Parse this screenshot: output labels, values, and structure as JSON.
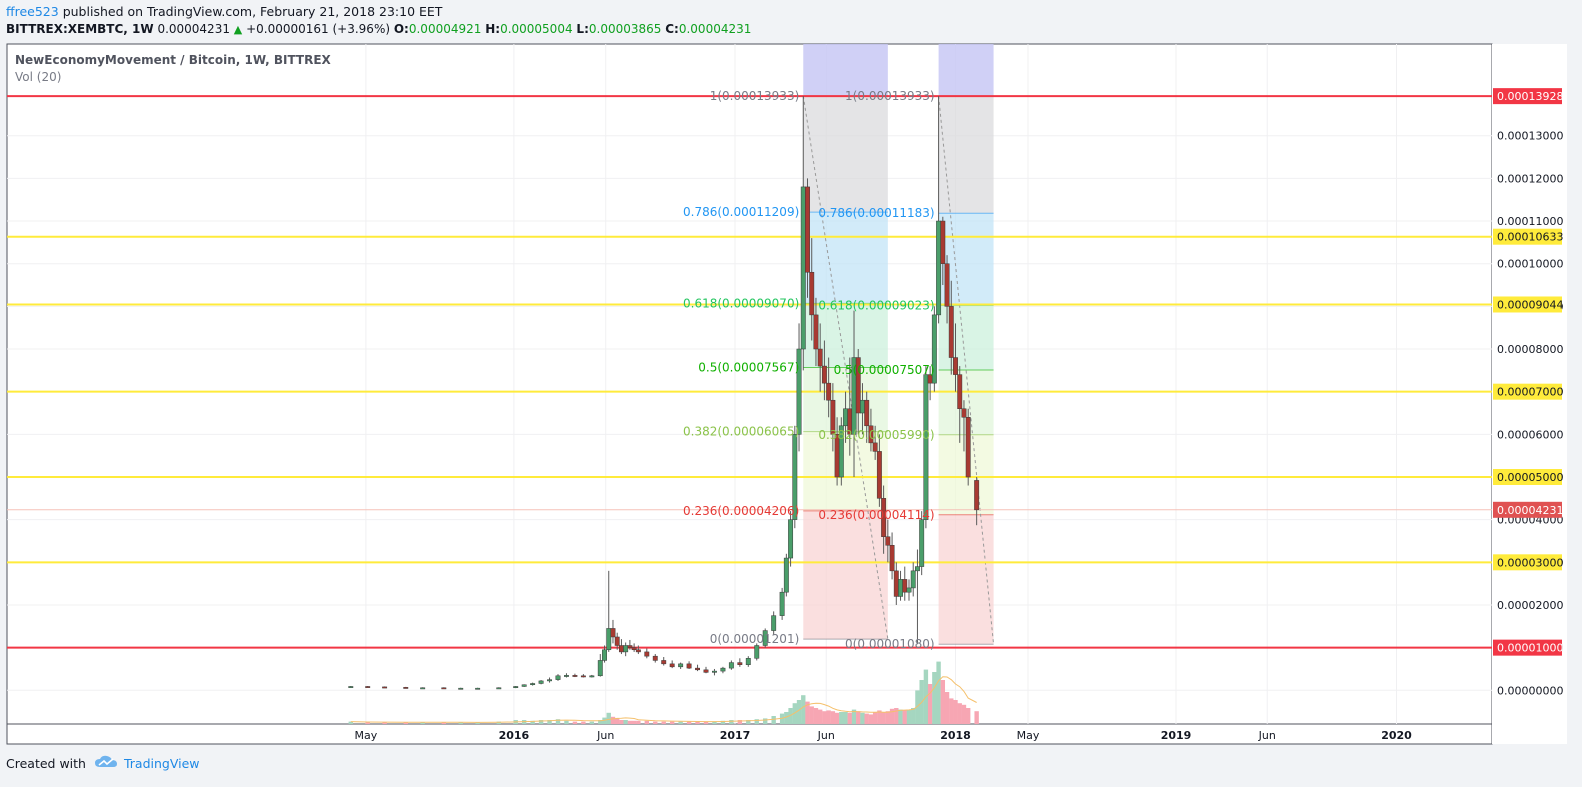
{
  "header": {
    "author": "ffree523",
    "published_text": "published on TradingView.com, February 21, 2018 23:10 EET"
  },
  "ohlc": {
    "symbol": "BITTREX:XEMBTC, 1W",
    "price": "0.00004231",
    "change": "+0.00000161 (+3.96%)",
    "o_label": "O:",
    "o": "0.00004921",
    "h_label": "H:",
    "h": "0.00005004",
    "l_label": "L:",
    "l": "0.00003865",
    "c_label": "C:",
    "c": "0.00004231",
    "up_color": "#10a020"
  },
  "footer": {
    "created_with": "Created with",
    "brand": "TradingView"
  },
  "chart_data": {
    "type": "candlestick",
    "title": "NewEconomyMovement / Bitcoin, 1W, BITTREX",
    "indicator_label": "Vol (20)",
    "ylim": [
      0.0,
      0.00014
    ],
    "y_ticks": [
      "0.00000000",
      "0.00001000",
      "0.00002000",
      "0.00003000",
      "0.00004000",
      "0.00005000",
      "0.00006000",
      "0.00007000",
      "0.00008000",
      "0.00009000",
      "0.00010000",
      "0.00011000",
      "0.00012000",
      "0.00013000"
    ],
    "x_ticks": [
      {
        "label": "May",
        "date": "2015-05-01"
      },
      {
        "label": "2016",
        "date": "2016-01-01"
      },
      {
        "label": "Jun",
        "date": "2016-06-01"
      },
      {
        "label": "2017",
        "date": "2017-01-01"
      },
      {
        "label": "Jun",
        "date": "2017-06-01"
      },
      {
        "label": "2018",
        "date": "2018-01-01"
      },
      {
        "label": "May",
        "date": "2018-05-01"
      },
      {
        "label": "2019",
        "date": "2019-01-01"
      },
      {
        "label": "Jun",
        "date": "2019-06-01"
      },
      {
        "label": "2020",
        "date": "2020-01-01"
      }
    ],
    "horizontal_lines": [
      {
        "value": 0.00013928,
        "label": "0.00013928",
        "color": "#f23645"
      },
      {
        "value": 0.00010633,
        "label": "0.00010633",
        "color": "#ffeb3b"
      },
      {
        "value": 9.044e-05,
        "label": "0.00009044",
        "color": "#ffeb3b"
      },
      {
        "value": 7e-05,
        "label": "0.00007000",
        "color": "#ffeb3b"
      },
      {
        "value": 5e-05,
        "label": "0.00005000",
        "color": "#ffeb3b"
      },
      {
        "value": 3e-05,
        "label": "0.00003000",
        "color": "#ffeb3b"
      },
      {
        "value": 1e-05,
        "label": "0.00001000",
        "color": "#f23645"
      }
    ],
    "last_price": {
      "value": 4.231e-05,
      "label": "0.00004231",
      "color": "#e05252"
    },
    "fib_retracements": [
      {
        "from_date": "2017-04-24",
        "to_date": "2017-09-11",
        "start_date": "2017-04-24",
        "levels": [
          {
            "ratio": "1",
            "value": 0.00013933,
            "label": "1(0.00013933)",
            "color": "#787b86"
          },
          {
            "ratio": "0.786",
            "value": 0.00011209,
            "label": "0.786(0.00011209)",
            "color": "#2196f3"
          },
          {
            "ratio": "0.618",
            "value": 9.07e-05,
            "label": "0.618(0.00009070)",
            "color": "#22c55e"
          },
          {
            "ratio": "0.5",
            "value": 7.567e-05,
            "label": "0.5(0.00007567)",
            "color": "#10b000"
          },
          {
            "ratio": "0.382",
            "value": 6.065e-05,
            "label": "0.382(0.00006065)",
            "color": "#8bc34a"
          },
          {
            "ratio": "0.236",
            "value": 4.206e-05,
            "label": "0.236(0.00004206)",
            "color": "#e53935"
          },
          {
            "ratio": "0",
            "value": 1.201e-05,
            "label": "0(0.00001201)",
            "color": "#787b86"
          }
        ]
      },
      {
        "from_date": "2017-12-04",
        "to_date": "2018-03-05",
        "start_date": "2017-12-04",
        "levels": [
          {
            "ratio": "1",
            "value": 0.00013933,
            "label": "1(0.00013933)",
            "color": "#787b86"
          },
          {
            "ratio": "0.786",
            "value": 0.00011183,
            "label": "0.786(0.00011183)",
            "color": "#2196f3"
          },
          {
            "ratio": "0.618",
            "value": 9.023e-05,
            "label": "0.618(0.00009023)",
            "color": "#22c55e"
          },
          {
            "ratio": "0.5",
            "value": 7.507e-05,
            "label": "0.5(0.00007507)",
            "color": "#10b000"
          },
          {
            "ratio": "0.382",
            "value": 5.99e-05,
            "label": "0.382(0.00005990)",
            "color": "#8bc34a"
          },
          {
            "ratio": "0.236",
            "value": 4.114e-05,
            "label": "0.236(0.00004114)",
            "color": "#e53935"
          },
          {
            "ratio": "0",
            "value": 1.08e-05,
            "label": "0(0.00001080)",
            "color": "#787b86"
          }
        ]
      }
    ],
    "candles": [
      [
        "2015-04-06",
        9e-07,
        1e-06,
        8e-07,
        9e-07
      ],
      [
        "2015-05-04",
        9e-07,
        1e-06,
        8e-07,
        8e-07
      ],
      [
        "2015-06-01",
        8e-07,
        9e-07,
        7e-07,
        7e-07
      ],
      [
        "2015-07-06",
        7e-07,
        8e-07,
        6e-07,
        6e-07
      ],
      [
        "2015-08-03",
        6e-07,
        7e-07,
        5e-07,
        6e-07
      ],
      [
        "2015-09-07",
        6e-07,
        7e-07,
        5e-07,
        5e-07
      ],
      [
        "2015-10-05",
        5e-07,
        6e-07,
        4e-07,
        5e-07
      ],
      [
        "2015-11-02",
        5e-07,
        6e-07,
        4e-07,
        5e-07
      ],
      [
        "2015-12-07",
        5e-07,
        7e-07,
        4e-07,
        6e-07
      ],
      [
        "2016-01-04",
        6e-07,
        1e-06,
        5e-07,
        9e-07
      ],
      [
        "2016-01-18",
        9e-07,
        1.4e-06,
        8e-07,
        1.3e-06
      ],
      [
        "2016-02-01",
        1.3e-06,
        1.8e-06,
        1.1e-06,
        1.6e-06
      ],
      [
        "2016-02-15",
        1.6e-06,
        2.4e-06,
        1.4e-06,
        2.2e-06
      ],
      [
        "2016-02-29",
        2.2e-06,
        3e-06,
        1.8e-06,
        2.5e-06
      ],
      [
        "2016-03-14",
        2.5e-06,
        3.8e-06,
        2.2e-06,
        3.4e-06
      ],
      [
        "2016-03-28",
        3.4e-06,
        4e-06,
        3e-06,
        3.5e-06
      ],
      [
        "2016-04-11",
        3.5e-06,
        3.9e-06,
        3.1e-06,
        3.4e-06
      ],
      [
        "2016-04-25",
        3.4e-06,
        3.8e-06,
        3e-06,
        3.3e-06
      ],
      [
        "2016-05-09",
        3.3e-06,
        3.6e-06,
        3e-06,
        3.4e-06
      ],
      [
        "2016-05-23",
        3.4e-06,
        8.5e-06,
        3.2e-06,
        7e-06
      ],
      [
        "2016-05-30",
        7e-06,
        1.05e-05,
        6.5e-06,
        9.5e-06
      ],
      [
        "2016-06-06",
        9.5e-06,
        2.8e-05,
        9e-06,
        1.45e-05
      ],
      [
        "2016-06-13",
        1.45e-05,
        1.65e-05,
        1.1e-05,
        1.25e-05
      ],
      [
        "2016-06-20",
        1.25e-05,
        1.35e-05,
        9.5e-06,
        1.05e-05
      ],
      [
        "2016-06-27",
        1.05e-05,
        1.2e-05,
        8.5e-06,
        9e-06
      ],
      [
        "2016-07-04",
        9e-06,
        1.12e-05,
        8e-06,
        1.05e-05
      ],
      [
        "2016-07-11",
        1.05e-05,
        1.18e-05,
        9.5e-06,
        1e-05
      ],
      [
        "2016-07-18",
        1e-05,
        1.1e-05,
        9e-06,
        9.5e-06
      ],
      [
        "2016-07-25",
        9.5e-06,
        1.05e-05,
        8.5e-06,
        9e-06
      ],
      [
        "2016-08-08",
        9e-06,
        9.8e-06,
        7.5e-06,
        8e-06
      ],
      [
        "2016-08-22",
        8e-06,
        8.5e-06,
        6.5e-06,
        7e-06
      ],
      [
        "2016-09-05",
        7e-06,
        7.8e-06,
        5.8e-06,
        6.2e-06
      ],
      [
        "2016-09-19",
        6.2e-06,
        7e-06,
        5.2e-06,
        5.5e-06
      ],
      [
        "2016-10-03",
        5.5e-06,
        6.5e-06,
        5e-06,
        6.2e-06
      ],
      [
        "2016-10-17",
        6.2e-06,
        6.8e-06,
        5e-06,
        5.2e-06
      ],
      [
        "2016-10-31",
        5.2e-06,
        6e-06,
        4.5e-06,
        4.8e-06
      ],
      [
        "2016-11-14",
        4.8e-06,
        5.5e-06,
        4e-06,
        4.2e-06
      ],
      [
        "2016-11-28",
        4.2e-06,
        5e-06,
        3.5e-06,
        4.5e-06
      ],
      [
        "2016-12-12",
        4.5e-06,
        5.5e-06,
        4e-06,
        5.2e-06
      ],
      [
        "2016-12-26",
        5.2e-06,
        7e-06,
        4.8e-06,
        6.5e-06
      ],
      [
        "2017-01-09",
        6.5e-06,
        7.5e-06,
        5.5e-06,
        6e-06
      ],
      [
        "2017-01-23",
        6e-06,
        8e-06,
        5.5e-06,
        7.5e-06
      ],
      [
        "2017-02-06",
        7.5e-06,
        1.1e-05,
        7e-06,
        1.05e-05
      ],
      [
        "2017-02-20",
        1.05e-05,
        1.45e-05,
        1e-05,
        1.4e-05
      ],
      [
        "2017-03-06",
        1.4e-05,
        1.85e-05,
        1.3e-05,
        1.75e-05
      ],
      [
        "2017-03-20",
        1.75e-05,
        2.4e-05,
        1.65e-05,
        2.3e-05
      ],
      [
        "2017-03-27",
        2.3e-05,
        3.2e-05,
        2.2e-05,
        3.1e-05
      ],
      [
        "2017-04-03",
        3.1e-05,
        4.2e-05,
        2.9e-05,
        4e-05
      ],
      [
        "2017-04-10",
        4e-05,
        6.2e-05,
        3.8e-05,
        6e-05
      ],
      [
        "2017-04-17",
        6e-05,
        8.6e-05,
        5.6e-05,
        8e-05
      ],
      [
        "2017-04-24",
        8e-05,
        0.0001393,
        7.5e-05,
        0.000118
      ],
      [
        "2017-05-01",
        0.000118,
        0.00012,
        9.2e-05,
        9.8e-05
      ],
      [
        "2017-05-08",
        9.8e-05,
        0.000106,
        8.2e-05,
        8.8e-05
      ],
      [
        "2017-05-15",
        8.8e-05,
        9.2e-05,
        7.6e-05,
        8e-05
      ],
      [
        "2017-05-22",
        8e-05,
        8.6e-05,
        7e-05,
        7.6e-05
      ],
      [
        "2017-05-29",
        7.6e-05,
        8.2e-05,
        6.8e-05,
        7.2e-05
      ],
      [
        "2017-06-05",
        7.2e-05,
        7.8e-05,
        6.4e-05,
        6.8e-05
      ],
      [
        "2017-06-12",
        6.8e-05,
        7.2e-05,
        5.6e-05,
        6e-05
      ],
      [
        "2017-06-19",
        6e-05,
        6.4e-05,
        4.8e-05,
        5e-05
      ],
      [
        "2017-06-26",
        5e-05,
        6.4e-05,
        4.8e-05,
        6.2e-05
      ],
      [
        "2017-07-03",
        6.2e-05,
        7e-05,
        5.8e-05,
        6.6e-05
      ],
      [
        "2017-07-10",
        6.6e-05,
        7.8e-05,
        5.5e-05,
        6e-05
      ],
      [
        "2017-07-17",
        6e-05,
        8.9e-05,
        5e-05,
        7.8e-05
      ],
      [
        "2017-07-24",
        7.8e-05,
        8e-05,
        6e-05,
        6.5e-05
      ],
      [
        "2017-07-31",
        6.5e-05,
        7.2e-05,
        6e-05,
        6.8e-05
      ],
      [
        "2017-08-07",
        6.8e-05,
        7e-05,
        5.8e-05,
        6.2e-05
      ],
      [
        "2017-08-14",
        6.2e-05,
        6.6e-05,
        5.6e-05,
        5.8e-05
      ],
      [
        "2017-08-21",
        5.8e-05,
        6.2e-05,
        5.4e-05,
        5.6e-05
      ],
      [
        "2017-08-28",
        5.6e-05,
        6e-05,
        4.3e-05,
        4.5e-05
      ],
      [
        "2017-09-04",
        4.5e-05,
        4.8e-05,
        3.2e-05,
        3.6e-05
      ],
      [
        "2017-09-11",
        3.6e-05,
        4e-05,
        3e-05,
        3.4e-05
      ],
      [
        "2017-09-18",
        3.4e-05,
        3.7e-05,
        2.6e-05,
        2.8e-05
      ],
      [
        "2017-09-25",
        2.8e-05,
        3e-05,
        2e-05,
        2.2e-05
      ],
      [
        "2017-10-02",
        2.2e-05,
        2.8e-05,
        2.1e-05,
        2.6e-05
      ],
      [
        "2017-10-09",
        2.6e-05,
        2.9e-05,
        2.1e-05,
        2.3e-05
      ],
      [
        "2017-10-16",
        2.3e-05,
        2.6e-05,
        2.1e-05,
        2.4e-05
      ],
      [
        "2017-10-23",
        2.4e-05,
        3e-05,
        2.2e-05,
        2.8e-05
      ],
      [
        "2017-10-30",
        2.8e-05,
        3.3e-05,
        1.08e-05,
        2.9e-05
      ],
      [
        "2017-11-06",
        2.9e-05,
        4.2e-05,
        2.7e-05,
        4e-05
      ],
      [
        "2017-11-13",
        4e-05,
        7.6e-05,
        3.8e-05,
        7.4e-05
      ],
      [
        "2017-11-20",
        7.4e-05,
        7.6e-05,
        6.8e-05,
        7.2e-05
      ],
      [
        "2017-11-27",
        7.2e-05,
        9e-05,
        7e-05,
        8.8e-05
      ],
      [
        "2017-12-04",
        8.8e-05,
        0.0001393,
        8.6e-05,
        0.00011
      ],
      [
        "2017-12-11",
        0.00011,
        0.000111,
        9.5e-05,
        0.0001
      ],
      [
        "2017-12-18",
        0.0001,
        0.000102,
        8.6e-05,
        9e-05
      ],
      [
        "2017-12-25",
        9e-05,
        9.6e-05,
        7.4e-05,
        7.8e-05
      ],
      [
        "2018-01-01",
        7.8e-05,
        8.6e-05,
        7e-05,
        7.4e-05
      ],
      [
        "2018-01-08",
        7.4e-05,
        7.6e-05,
        5.8e-05,
        6.6e-05
      ],
      [
        "2018-01-15",
        6.6e-05,
        6.8e-05,
        5.6e-05,
        6.4e-05
      ],
      [
        "2018-01-22",
        6.4e-05,
        6.6e-05,
        4.8e-05,
        5e-05
      ],
      [
        "2018-02-05",
        4.92e-05,
        5e-05,
        3.87e-05,
        4.23e-05
      ]
    ],
    "volume_colors": {
      "up": "#a5d6c0",
      "down": "#f7a6b3",
      "ma": "#f5c06b"
    }
  }
}
